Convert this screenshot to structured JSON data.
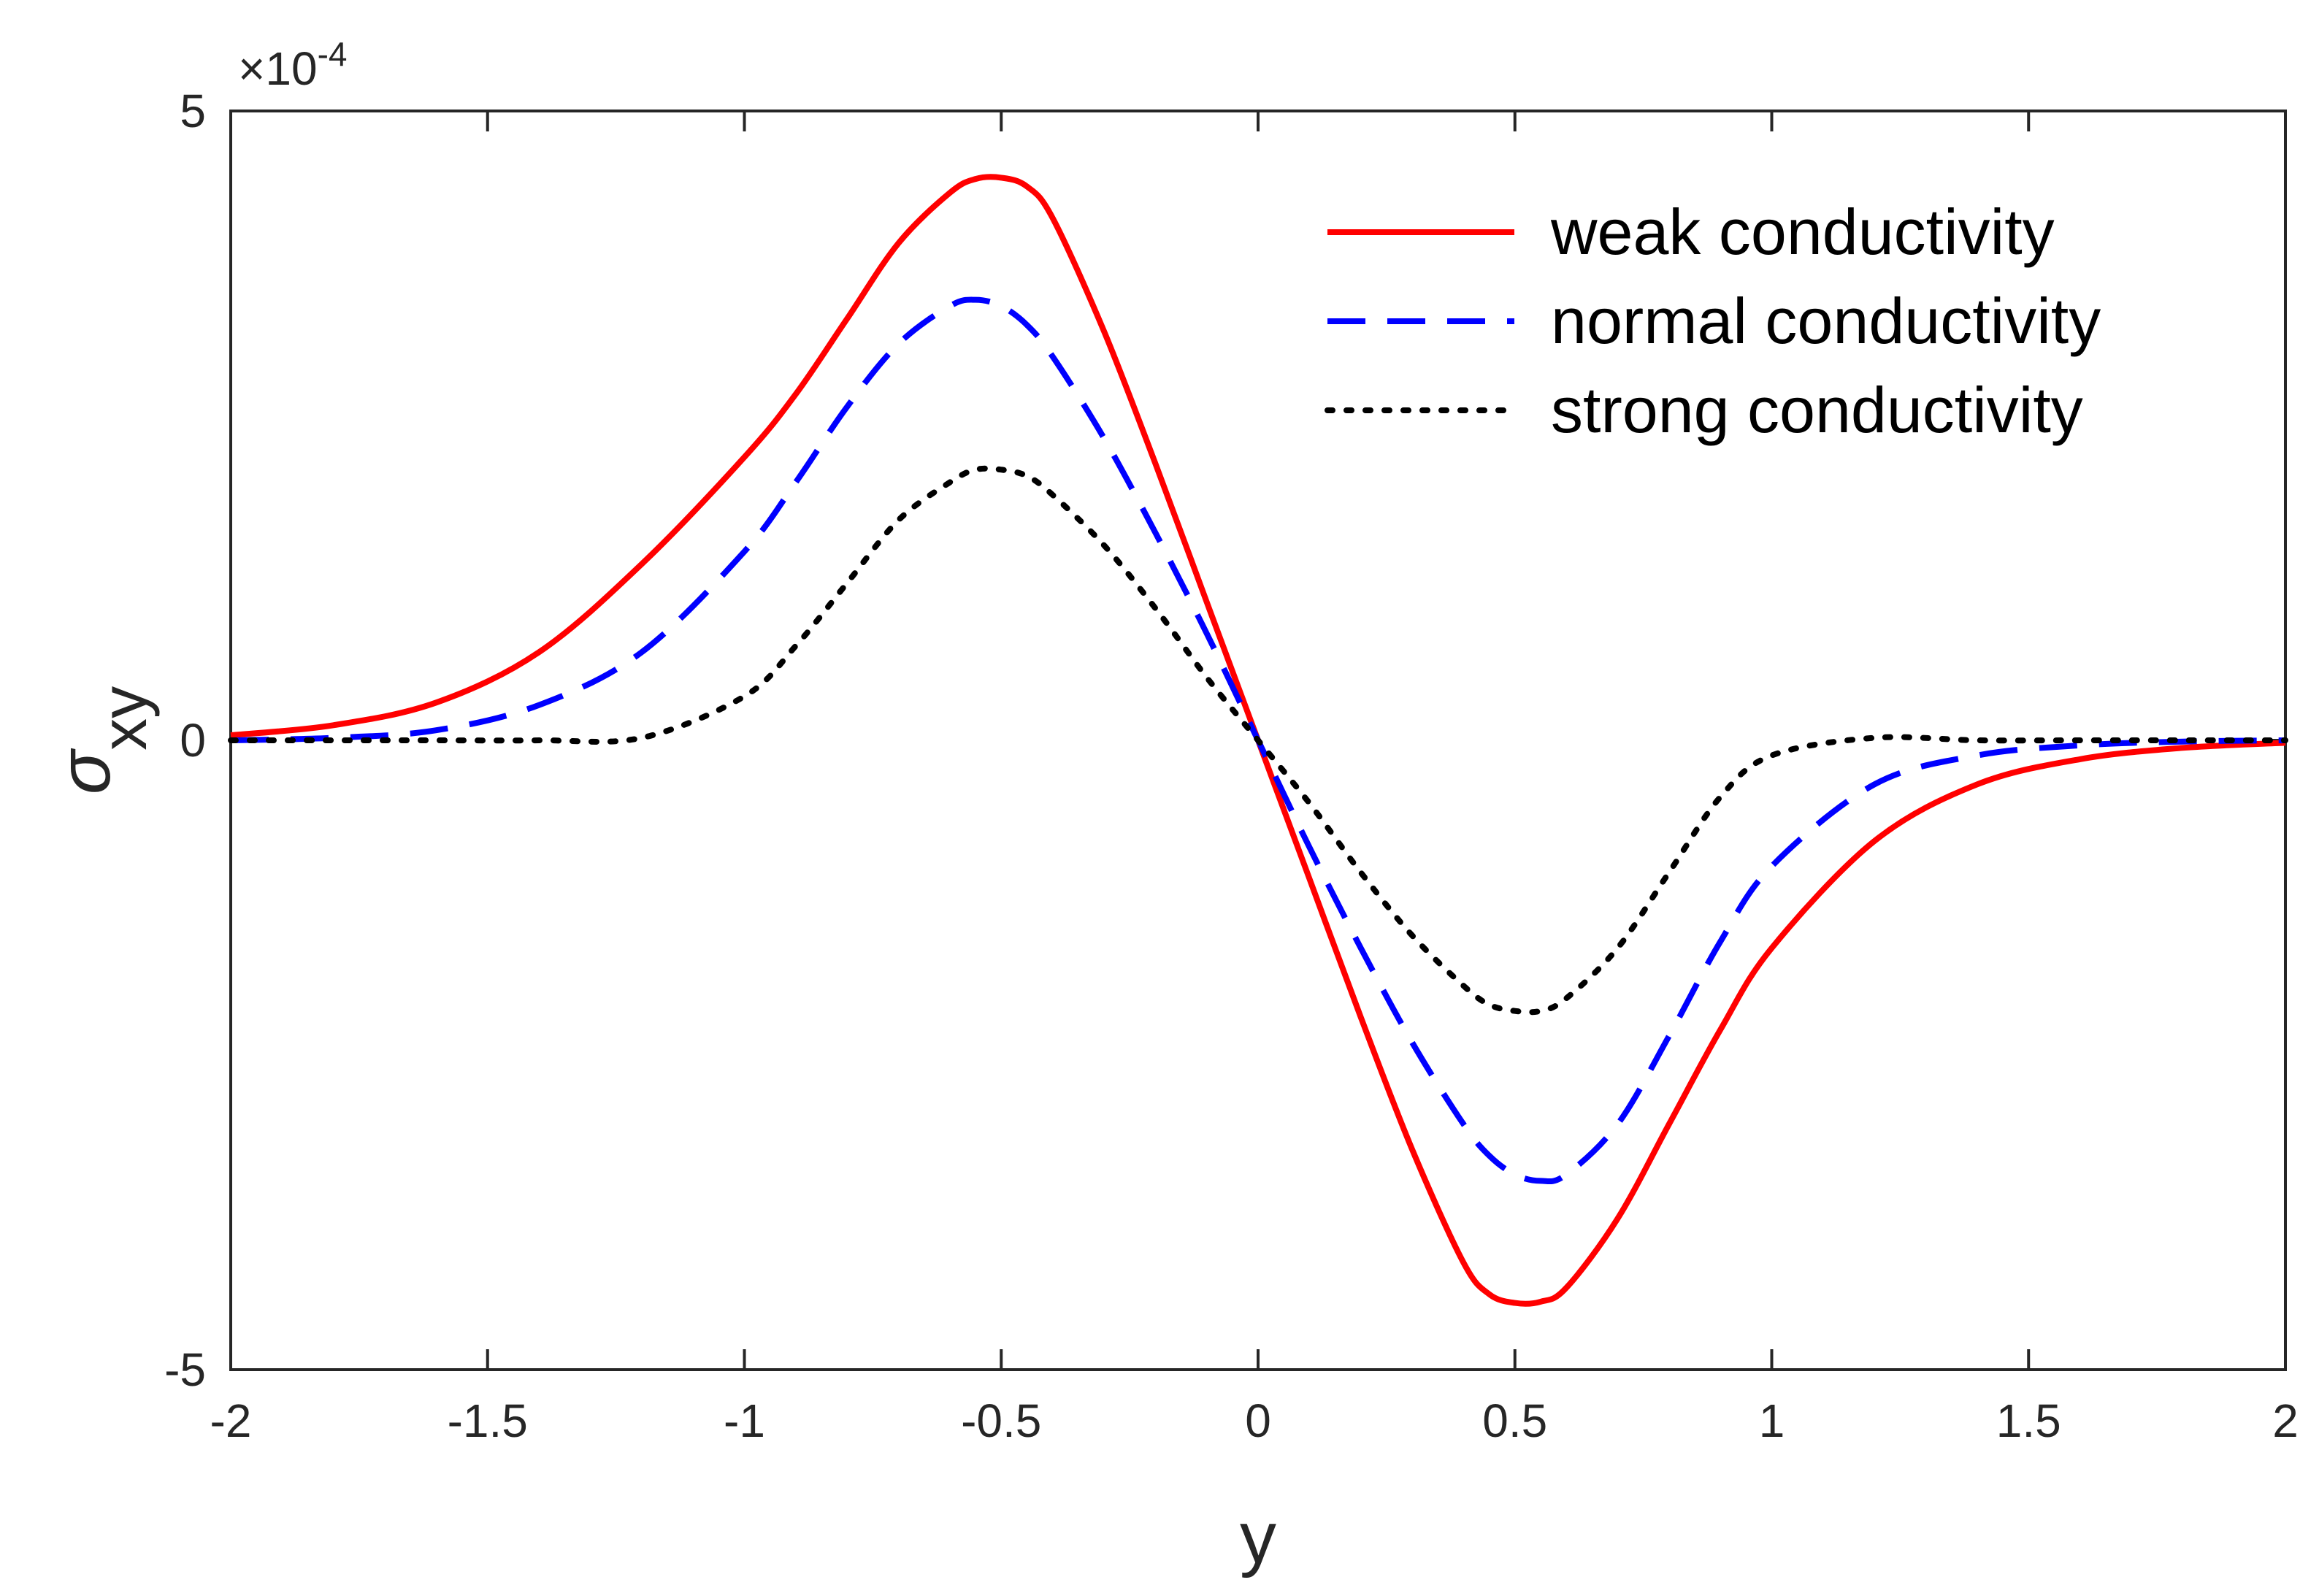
{
  "chart_data": {
    "type": "line",
    "title": "",
    "xlabel": "y",
    "ylabel": "σ",
    "ylabel_subscript": "xy",
    "exponent_multiplier": "×10",
    "exponent_power": "-4",
    "xlim": [
      -2,
      2
    ],
    "ylim": [
      -5,
      5
    ],
    "xticks": [
      -2,
      -1.5,
      -1,
      -0.5,
      0,
      0.5,
      1,
      1.5,
      2
    ],
    "xtick_labels": [
      "-2",
      "-1.5",
      "-1",
      "-0.5",
      "0",
      "0.5",
      "1",
      "1.5",
      "2"
    ],
    "yticks": [
      -5,
      0,
      5
    ],
    "ytick_labels": [
      "-5",
      "0",
      "5"
    ],
    "grid": false,
    "legend_position": "top-right",
    "x": [
      -2,
      -1.8,
      -1.6,
      -1.4,
      -1.2,
      -1.0,
      -0.9,
      -0.8,
      -0.7,
      -0.6,
      -0.55,
      -0.5,
      -0.45,
      -0.4,
      -0.3,
      -0.2,
      -0.1,
      0,
      0.1,
      0.2,
      0.3,
      0.4,
      0.45,
      0.5,
      0.55,
      0.6,
      0.7,
      0.8,
      0.9,
      1.0,
      1.2,
      1.4,
      1.6,
      1.8,
      2
    ],
    "series": [
      {
        "name": "weak conductivity",
        "color": "#ff0000",
        "style": "solid",
        "values": [
          0.04,
          0.12,
          0.3,
          0.7,
          1.4,
          2.25,
          2.75,
          3.35,
          3.95,
          4.35,
          4.46,
          4.47,
          4.4,
          4.15,
          3.25,
          2.2,
          1.1,
          0,
          -1.1,
          -2.2,
          -3.25,
          -4.15,
          -4.4,
          -4.47,
          -4.46,
          -4.35,
          -3.8,
          -3.05,
          -2.3,
          -1.65,
          -0.8,
          -0.35,
          -0.15,
          -0.06,
          -0.02
        ]
      },
      {
        "name": "normal conductivity",
        "color": "#0000ff",
        "style": "dashed",
        "values": [
          0.0,
          0.02,
          0.08,
          0.28,
          0.7,
          1.5,
          2.05,
          2.65,
          3.15,
          3.45,
          3.5,
          3.45,
          3.3,
          3.05,
          2.4,
          1.65,
          0.85,
          0,
          -0.85,
          -1.65,
          -2.4,
          -3.05,
          -3.3,
          -3.45,
          -3.5,
          -3.45,
          -3.05,
          -2.35,
          -1.6,
          -1.0,
          -0.35,
          -0.12,
          -0.04,
          -0.01,
          0.0
        ]
      },
      {
        "name": "strong conductivity",
        "color": "#000000",
        "style": "dotted",
        "values": [
          0.0,
          0.0,
          0.0,
          0.0,
          0.02,
          0.35,
          0.75,
          1.25,
          1.75,
          2.05,
          2.15,
          2.15,
          2.1,
          1.95,
          1.55,
          1.05,
          0.5,
          0,
          -0.5,
          -1.05,
          -1.55,
          -1.95,
          -2.1,
          -2.15,
          -2.15,
          -2.05,
          -1.65,
          -1.05,
          -0.45,
          -0.12,
          0.02,
          0.0,
          0.0,
          0.0,
          0.0
        ]
      }
    ]
  }
}
